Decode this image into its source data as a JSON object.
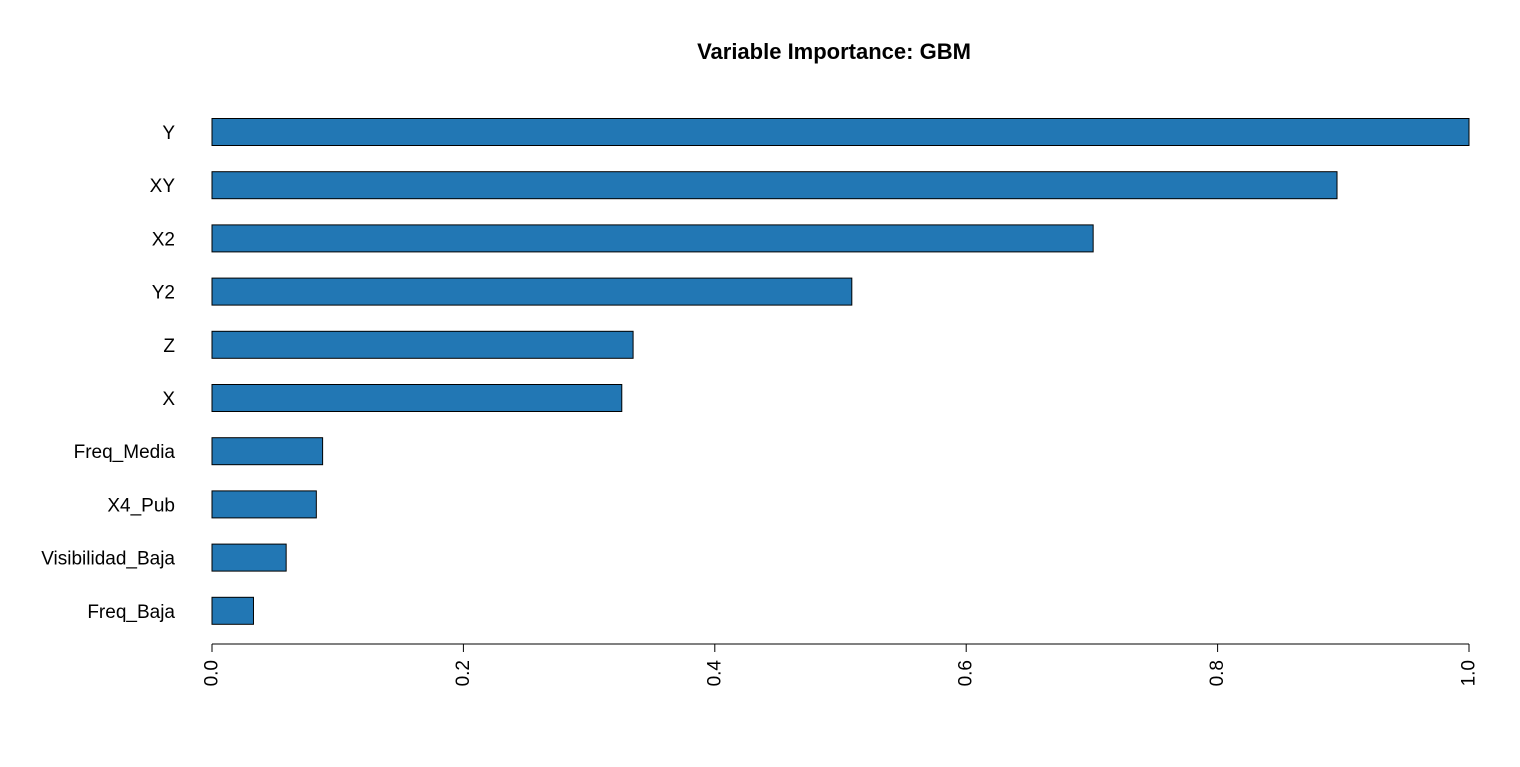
{
  "chart_data": {
    "type": "bar",
    "orientation": "horizontal",
    "title": "Variable Importance: GBM",
    "xlabel": "",
    "ylabel": "",
    "categories": [
      "Y",
      "XY",
      "X2",
      "Y2",
      "Z",
      "X",
      "Freq_Media",
      "X4_Pub",
      "Visibilidad_Baja",
      "Freq_Baja"
    ],
    "values": [
      1.0,
      0.895,
      0.701,
      0.509,
      0.335,
      0.326,
      0.088,
      0.083,
      0.059,
      0.033
    ],
    "xlim": [
      0,
      1.0
    ],
    "x_ticks": [
      0.0,
      0.2,
      0.4,
      0.6,
      0.8,
      1.0
    ],
    "x_tick_labels": [
      "0.0",
      "0.2",
      "0.4",
      "0.6",
      "0.8",
      "1.0"
    ],
    "grid": false,
    "legend": "none",
    "bar_color": "#2277B4",
    "bar_edge_color": "#000000"
  }
}
